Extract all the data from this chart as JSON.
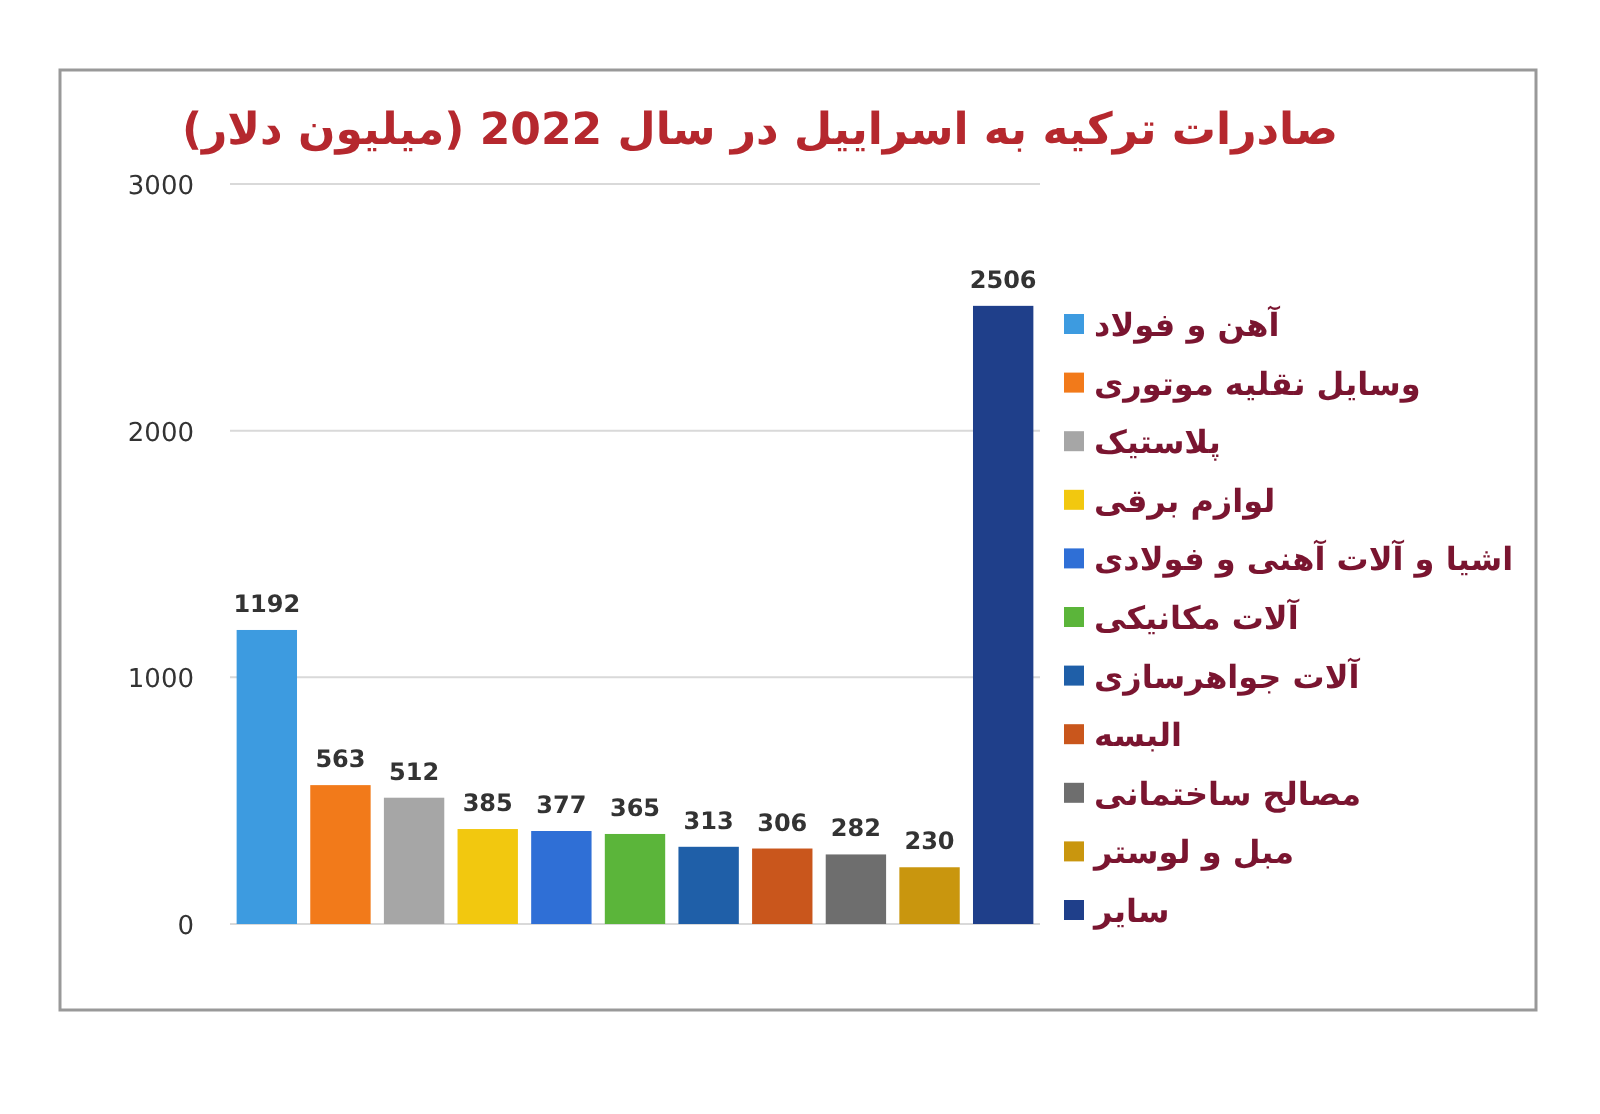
{
  "chart_data": {
    "type": "bar",
    "title": "صادرات ترکیه به اسراییل در سال 2022 (میلیون دلار)",
    "categories": [
      null,
      null,
      null,
      null,
      null,
      null,
      null,
      null,
      null,
      null,
      null
    ],
    "series": [
      {
        "name": "آهن و فولاد",
        "color": "#3d9be0",
        "values": [
          1192,
          null,
          null,
          null,
          null,
          null,
          null,
          null,
          null,
          null,
          null
        ]
      },
      {
        "name": "وسایل نقلیه موتوری",
        "color": "#f27a1a",
        "values": [
          null,
          563,
          null,
          null,
          null,
          null,
          null,
          null,
          null,
          null,
          null
        ]
      },
      {
        "name": "پلاستیک",
        "color": "#a6a6a6",
        "values": [
          null,
          null,
          512,
          null,
          null,
          null,
          null,
          null,
          null,
          null,
          null
        ]
      },
      {
        "name": "لوازم برقی",
        "color": "#f2c80f",
        "values": [
          null,
          null,
          null,
          385,
          null,
          null,
          null,
          null,
          null,
          null,
          null
        ]
      },
      {
        "name": "اشیا و آلات آهنی و فولادی",
        "color": "#2f6fd6",
        "values": [
          null,
          null,
          null,
          null,
          377,
          null,
          null,
          null,
          null,
          null,
          null
        ]
      },
      {
        "name": "آلات مکانیکی",
        "color": "#5bb53a",
        "values": [
          null,
          null,
          null,
          null,
          null,
          365,
          null,
          null,
          null,
          null,
          null
        ]
      },
      {
        "name": "آلات جواهرسازی",
        "color": "#1f5fa8",
        "values": [
          null,
          null,
          null,
          null,
          null,
          null,
          313,
          null,
          null,
          null,
          null
        ]
      },
      {
        "name": "البسه",
        "color": "#c9561c",
        "values": [
          null,
          null,
          null,
          null,
          null,
          null,
          null,
          306,
          null,
          null,
          null
        ]
      },
      {
        "name": "مصالح ساختمانی",
        "color": "#6e6e6e",
        "values": [
          null,
          null,
          null,
          null,
          null,
          null,
          null,
          null,
          282,
          null,
          null
        ]
      },
      {
        "name": "مبل و لوستر",
        "color": "#c9960e",
        "values": [
          null,
          null,
          null,
          null,
          null,
          null,
          null,
          null,
          null,
          230,
          null
        ]
      },
      {
        "name": "سایر",
        "color": "#1f3f8a",
        "values": [
          null,
          null,
          null,
          null,
          null,
          null,
          null,
          null,
          null,
          null,
          2506
        ]
      }
    ],
    "ylim": [
      0,
      3000
    ],
    "yticks": [
      0,
      1000,
      2000,
      3000
    ],
    "grid": "y",
    "legend": "right",
    "data_labels": true
  }
}
